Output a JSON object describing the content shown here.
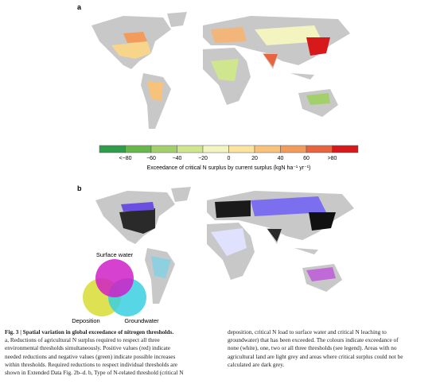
{
  "panel_a": {
    "label": "a",
    "colorbar": {
      "colors": [
        "#2e9e4a",
        "#66b84d",
        "#a3d06a",
        "#cfe68f",
        "#f4f4c0",
        "#fbe3a0",
        "#f9c27a",
        "#f29b5a",
        "#e8633f",
        "#d7191c"
      ],
      "tick_labels": [
        "<−80",
        "−60",
        "−40",
        "−20",
        "0",
        "20",
        "40",
        "60",
        ">80"
      ],
      "title": "Exceedance of critical N surplus by current surplus (kgN ha⁻¹ yr⁻¹)"
    }
  },
  "panel_b": {
    "label": "b",
    "legend": {
      "surface_water": "Surface water",
      "deposition": "Deposition",
      "groundwater": "Groundwater"
    }
  },
  "caption": {
    "left": [
      "Fig. 3 | Spatial variation in global exceedance of nitrogen thresholds.",
      "a, Reductions of agricultural N surplus required to respect all three",
      "environmental thresholds simultaneously. Positive values (red) indicate",
      "needed reductions and negative values (green) indicate possible increases",
      "within thresholds. Required reductions to respect individual thresholds are",
      "shown in Extended Data Fig. 2b–d. b, Type of N-related threshold (critical N"
    ],
    "right": [
      "deposition, critical N load to surface water and critical N leaching to",
      "groundwater) that has been exceeded. The colours indicate exceedance of",
      "none (white), one, two or all three thresholds (see legend). Areas with no",
      "agricultural land are light grey and areas where critical surplus could not be",
      "calculated are dark grey."
    ]
  }
}
